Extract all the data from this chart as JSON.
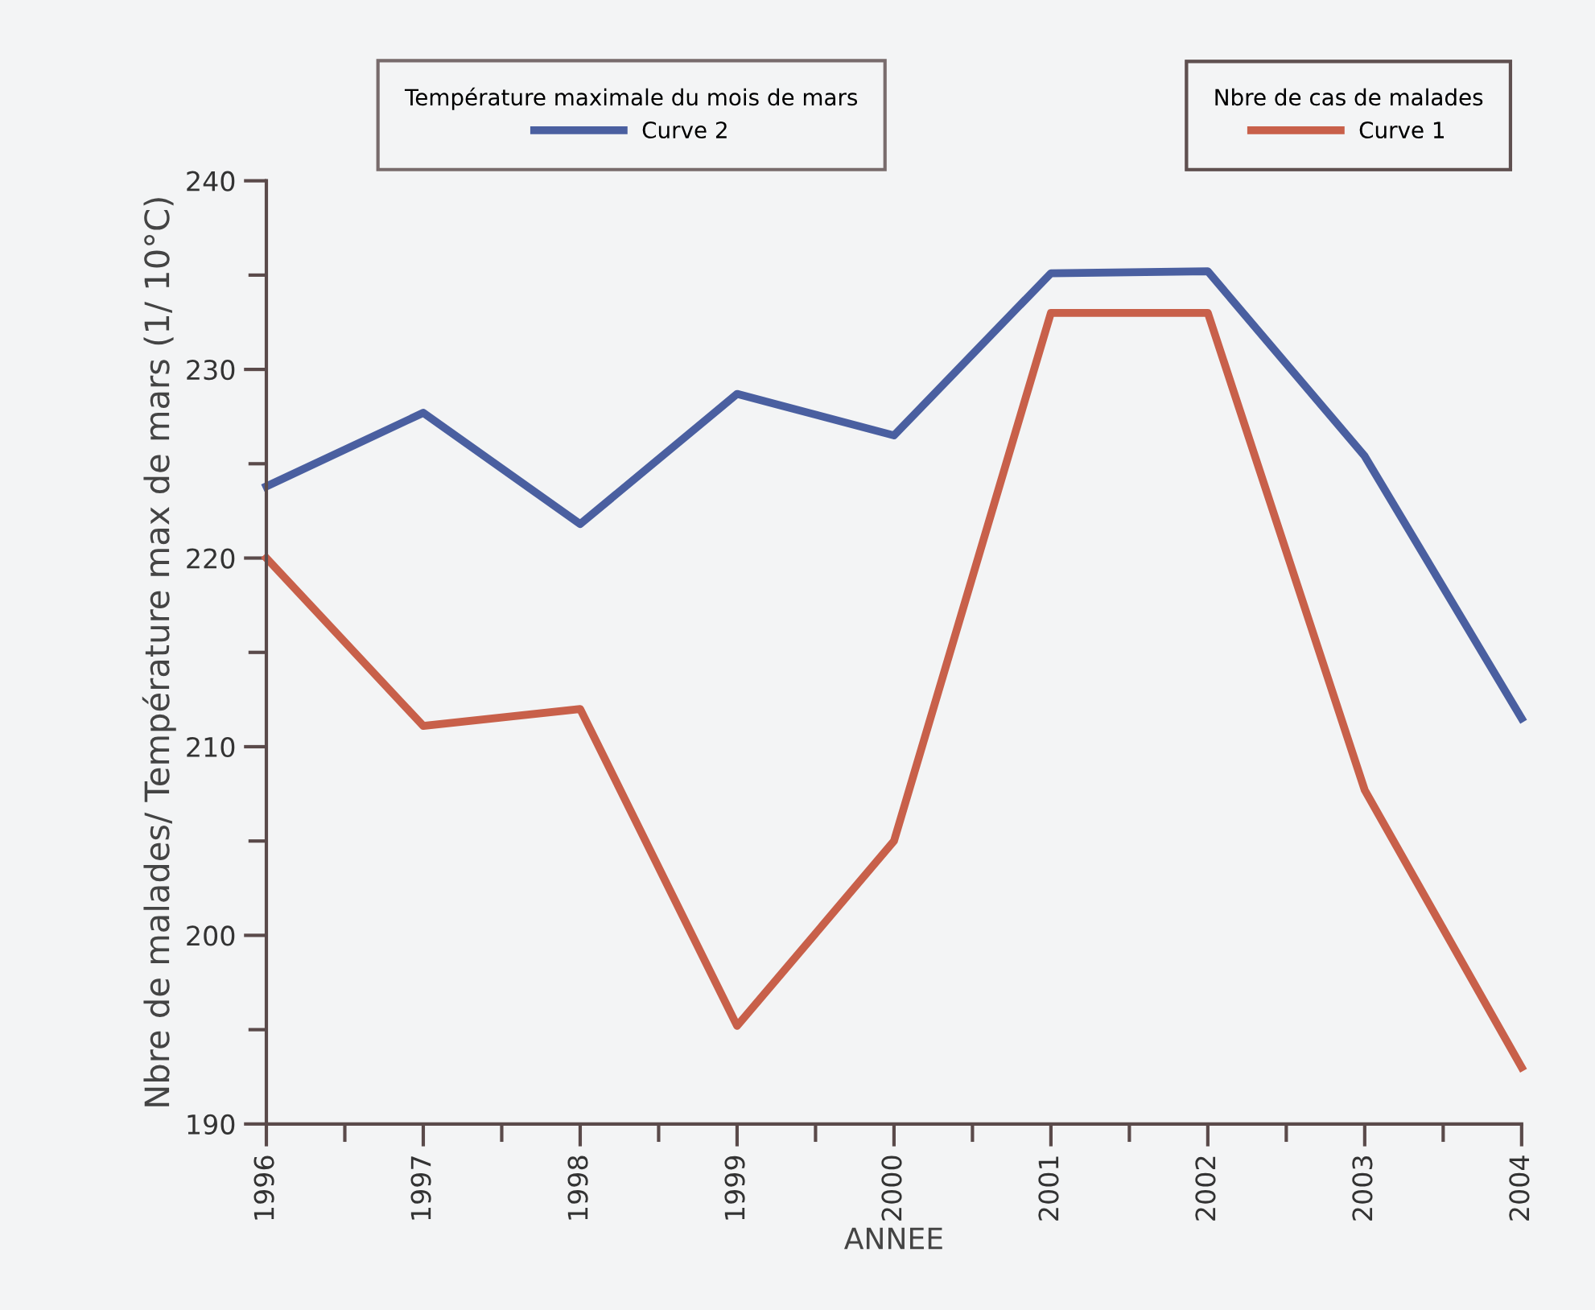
{
  "chart_data": {
    "type": "line",
    "xlabel": "ANNEE",
    "ylabel": "Nbre de malades/ Température max de mars (1/ 10°C)",
    "x": [
      1996,
      1997,
      1998,
      1999,
      2000,
      2001,
      2002,
      2003,
      2004
    ],
    "series": [
      {
        "name": "Curve 2",
        "color": "#4a5fa0",
        "values": [
          223.8,
          227.7,
          221.8,
          228.7,
          226.5,
          235.1,
          235.2,
          225.4,
          211.5
        ]
      },
      {
        "name": "Curve 1",
        "color": "#c8604a",
        "values": [
          220,
          211.1,
          212,
          195.2,
          205,
          233,
          233,
          207.7,
          193
        ]
      }
    ],
    "legend_title": [
      "Température maximale du mois de mars",
      "Nbre de cas de malades"
    ],
    "legend": "top",
    "xlim": [
      1996,
      2004
    ],
    "xticks": [
      1996,
      1997,
      1998,
      1999,
      2000,
      2001,
      2002,
      2003,
      2004
    ],
    "ylim": [
      190,
      240
    ],
    "yticks": [
      190,
      200,
      210,
      220,
      230,
      240
    ],
    "grid": false,
    "marker": "none",
    "line_style": "solid"
  }
}
